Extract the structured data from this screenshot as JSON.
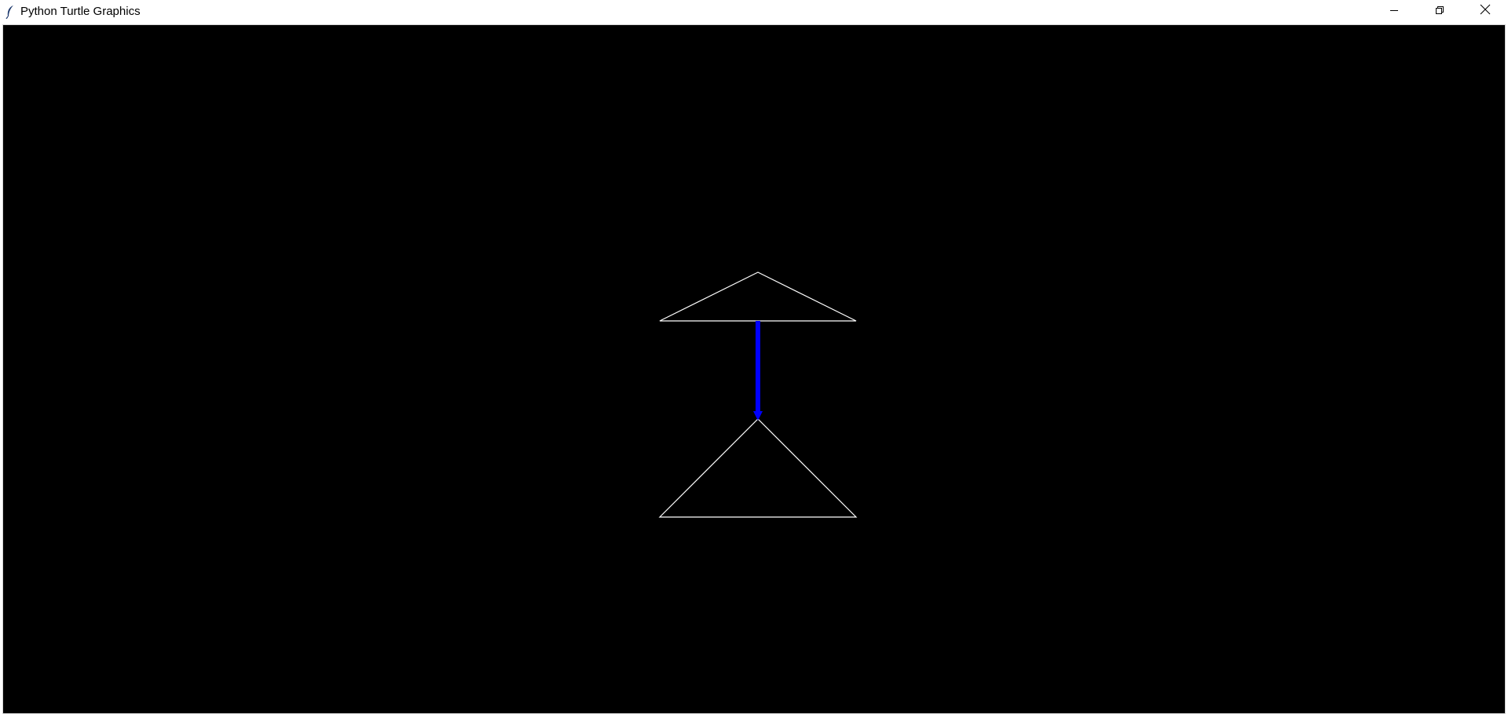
{
  "window": {
    "title": "Python Turtle Graphics",
    "icon": "tk-feather-icon",
    "controls": {
      "minimize_icon": "minimize-icon",
      "restore_icon": "restore-icon",
      "close_icon": "close-icon"
    }
  },
  "canvas": {
    "background": "#000000",
    "shapes": [
      {
        "name": "top-triangle",
        "stroke": "#ffffff"
      },
      {
        "name": "bottom-triangle",
        "stroke": "#ffffff"
      }
    ],
    "turtle": {
      "name": "turtle-line",
      "color": "#0000ff",
      "heading": "down"
    }
  }
}
